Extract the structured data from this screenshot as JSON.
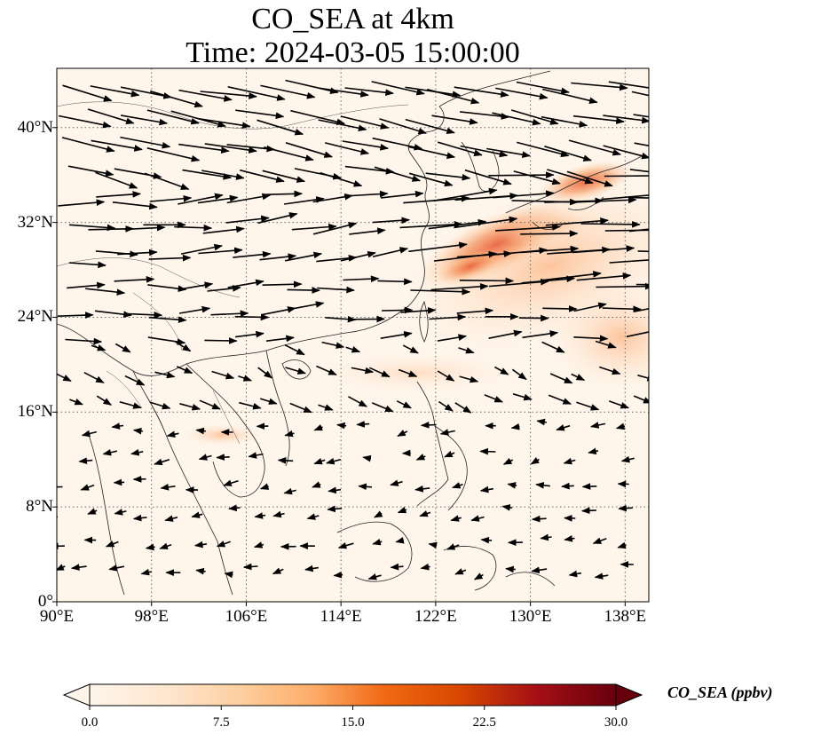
{
  "title": {
    "line1": "CO_SEA at 4km",
    "line2": "Time: 2024-03-05 15:00:00"
  },
  "map": {
    "extent": {
      "lon_min": 90,
      "lon_max": 140,
      "lat_min": 0,
      "lat_max": 45
    },
    "lat_ticks": [
      {
        "value": 40,
        "label": "40°N"
      },
      {
        "value": 32,
        "label": "32°N"
      },
      {
        "value": 24,
        "label": "24°N"
      },
      {
        "value": 16,
        "label": "16°N"
      },
      {
        "value": 8,
        "label": "8°N"
      },
      {
        "value": 0,
        "label": "0°"
      }
    ],
    "lon_ticks": [
      {
        "value": 90,
        "label": "90°E"
      },
      {
        "value": 98,
        "label": "98°E"
      },
      {
        "value": 106,
        "label": "106°E"
      },
      {
        "value": 114,
        "label": "114°E"
      },
      {
        "value": 122,
        "label": "122°E"
      },
      {
        "value": 130,
        "label": "130°E"
      },
      {
        "value": 138,
        "label": "138°E"
      }
    ],
    "gridlines": "dotted",
    "field": "CO_SEA",
    "vectors": "wind"
  },
  "colorbar": {
    "label": "CO_SEA (ppbv)",
    "min": 0.0,
    "max": 30.0,
    "ticks": [
      {
        "value": 0.0,
        "label": "0.0"
      },
      {
        "value": 7.5,
        "label": "7.5"
      },
      {
        "value": 15.0,
        "label": "15.0"
      },
      {
        "value": 22.5,
        "label": "22.5"
      },
      {
        "value": 30.0,
        "label": "30.0"
      }
    ],
    "colors": [
      "#fff5eb",
      "#fee6ce",
      "#fdd0a2",
      "#fdae6b",
      "#f16913",
      "#d94801",
      "#a50f15",
      "#67000d"
    ],
    "extend": "both"
  }
}
